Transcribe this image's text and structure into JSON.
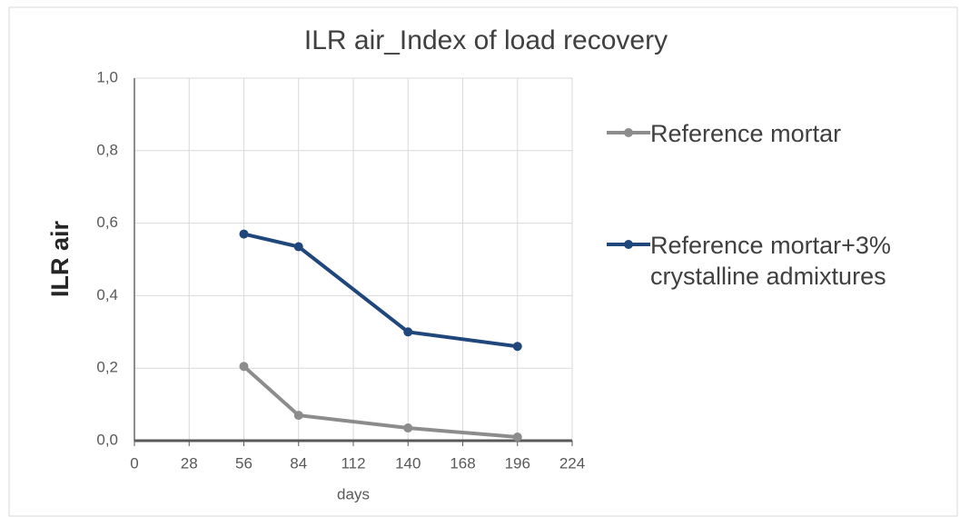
{
  "chart_data": {
    "type": "line",
    "title": "ILR air_Index of load recovery",
    "x_label": "days",
    "y_label": "ILR air",
    "x": [
      56,
      84,
      140,
      196
    ],
    "series": [
      {
        "name": "Reference mortar",
        "color": "#8c8c8c",
        "values": [
          0.205,
          0.07,
          0.035,
          0.01
        ]
      },
      {
        "name": "Reference mortar+3% crystalline admixtures",
        "color": "#1f477c",
        "values": [
          0.57,
          0.535,
          0.3,
          0.26
        ]
      }
    ],
    "xlim": [
      0,
      224
    ],
    "xticks": [
      0,
      28,
      56,
      84,
      112,
      140,
      168,
      196,
      224
    ],
    "ylim": [
      0,
      1
    ],
    "yticks": [
      {
        "value": 0,
        "label": "0,0"
      },
      {
        "value": 0.2,
        "label": "0,2"
      },
      {
        "value": 0.4,
        "label": "0,4"
      },
      {
        "value": 0.6,
        "label": "0,6"
      },
      {
        "value": 0.8,
        "label": "0,8"
      },
      {
        "value": 1,
        "label": "1,0"
      }
    ],
    "grid": true,
    "legend": "right"
  }
}
